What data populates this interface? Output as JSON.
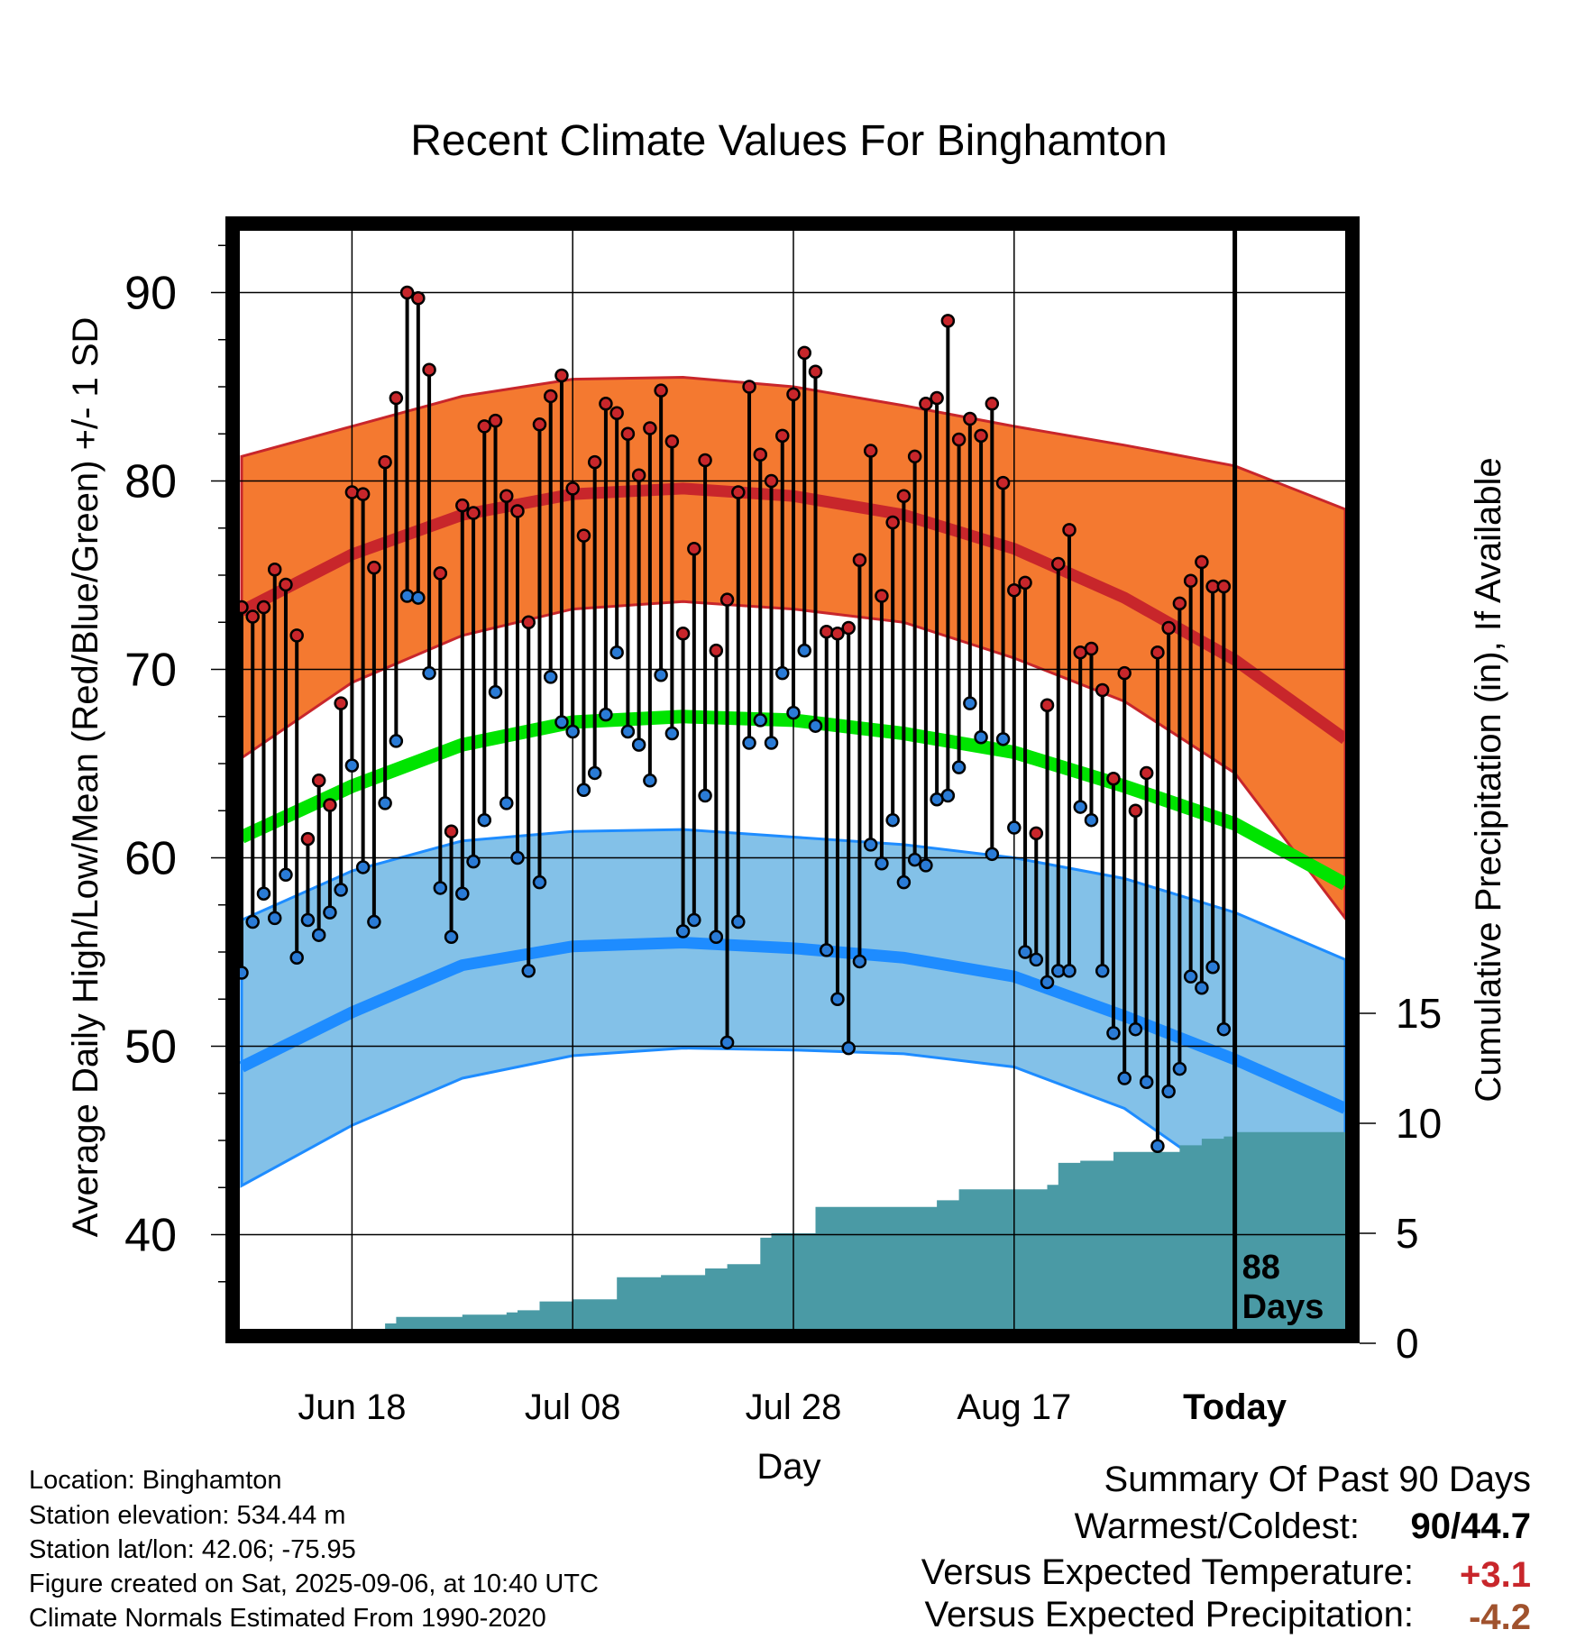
{
  "chart_data": {
    "type": "line",
    "title": "Recent Climate Values For Binghamton",
    "xlabel": "Day",
    "ylabel": "Average Daily High/Low/Mean (Red/Blue/Green) +/- 1 SD",
    "y2label": "Cumulative Precipitation (in), If Available",
    "ylim": [
      35,
      95
    ],
    "y2lim": [
      0,
      37.5
    ],
    "xlim": [
      -10,
      90
    ],
    "x_ticks": [
      {
        "x": 0,
        "label": "Jun 18"
      },
      {
        "x": 20,
        "label": "Jul 08"
      },
      {
        "x": 40,
        "label": "Jul 28"
      },
      {
        "x": 60,
        "label": "Aug 17"
      },
      {
        "x": 80,
        "label": "Today"
      }
    ],
    "y_ticks": [
      40,
      50,
      60,
      70,
      80,
      90
    ],
    "y2_ticks": [
      0,
      5,
      10,
      15
    ],
    "today_x": 80,
    "today_label_line1": "88",
    "today_label_line2": "Days",
    "grid": true,
    "normals": {
      "x": [
        -10,
        0,
        10,
        20,
        30,
        40,
        50,
        60,
        70,
        80,
        90
      ],
      "high_mean": [
        73.1,
        76.1,
        78.2,
        79.3,
        79.6,
        79.2,
        78.2,
        76.4,
        73.8,
        70.5,
        66.3
      ],
      "high_sd_upper": [
        81.3,
        82.9,
        84.5,
        85.4,
        85.5,
        85.0,
        84.0,
        82.9,
        81.9,
        80.8,
        78.5
      ],
      "high_sd_lower": [
        65.3,
        69.3,
        71.8,
        73.2,
        73.6,
        73.2,
        72.5,
        70.6,
        68.3,
        64.5,
        56.8
      ],
      "mean_mean": [
        61.1,
        63.8,
        66.0,
        67.2,
        67.5,
        67.3,
        66.6,
        65.6,
        63.8,
        61.8,
        58.6
      ],
      "low_mean": [
        48.9,
        51.8,
        54.3,
        55.3,
        55.5,
        55.2,
        54.7,
        53.7,
        51.6,
        49.3,
        46.7
      ],
      "low_sd_upper": [
        56.7,
        59.3,
        60.9,
        61.4,
        61.5,
        61.1,
        60.7,
        60.0,
        58.9,
        57.1,
        54.6
      ],
      "low_sd_lower": [
        42.6,
        45.8,
        48.3,
        49.5,
        49.9,
        49.8,
        49.6,
        48.9,
        46.7,
        42.6,
        38.9
      ]
    },
    "series": [
      {
        "name": "High",
        "color": "#c8262b",
        "x": [
          -10,
          -9,
          -8,
          -7,
          -6,
          -5,
          -4,
          -3,
          -2,
          -1,
          0,
          1,
          2,
          3,
          4,
          5,
          6,
          7,
          8,
          9,
          10,
          11,
          12,
          13,
          14,
          15,
          16,
          17,
          18,
          19,
          20,
          21,
          22,
          23,
          24,
          25,
          26,
          27,
          28,
          29,
          30,
          31,
          32,
          33,
          34,
          35,
          36,
          37,
          38,
          39,
          40,
          41,
          42,
          43,
          44,
          45,
          46,
          47,
          48,
          49,
          50,
          51,
          52,
          53,
          54,
          55,
          56,
          57,
          58,
          59,
          60,
          61,
          62,
          63,
          64,
          65,
          66,
          67,
          68,
          69,
          70,
          71,
          72,
          73,
          74,
          75,
          76,
          77,
          78,
          79
        ],
        "values": [
          73.3,
          72.8,
          73.3,
          75.3,
          74.5,
          71.8,
          61.0,
          64.1,
          62.8,
          68.2,
          79.4,
          79.3,
          75.4,
          81.0,
          84.4,
          90.0,
          89.7,
          85.9,
          75.1,
          61.4,
          78.7,
          78.3,
          82.9,
          83.2,
          79.2,
          78.4,
          72.5,
          83.0,
          84.5,
          85.6,
          79.6,
          77.1,
          81.0,
          84.1,
          83.6,
          82.5,
          80.3,
          82.8,
          84.8,
          82.1,
          71.9,
          76.4,
          81.1,
          71.0,
          73.7,
          79.4,
          85.0,
          81.4,
          80.0,
          82.4,
          84.6,
          86.8,
          85.8,
          72.0,
          71.9,
          72.2,
          75.8,
          81.6,
          73.9,
          77.8,
          79.2,
          81.3,
          84.1,
          84.4,
          88.5,
          82.2,
          83.3,
          82.4,
          84.1,
          79.9,
          74.2,
          74.6,
          61.3,
          68.1,
          75.6,
          77.4,
          70.9,
          71.1,
          68.9,
          64.2,
          69.8,
          62.5,
          64.5,
          70.9,
          72.2,
          73.5,
          74.7,
          75.7,
          74.4,
          74.4
        ]
      },
      {
        "name": "Low",
        "color": "#2a7bd6",
        "x": [
          -10,
          -9,
          -8,
          -7,
          -6,
          -5,
          -4,
          -3,
          -2,
          -1,
          0,
          1,
          2,
          3,
          4,
          5,
          6,
          7,
          8,
          9,
          10,
          11,
          12,
          13,
          14,
          15,
          16,
          17,
          18,
          19,
          20,
          21,
          22,
          23,
          24,
          25,
          26,
          27,
          28,
          29,
          30,
          31,
          32,
          33,
          34,
          35,
          36,
          37,
          38,
          39,
          40,
          41,
          42,
          43,
          44,
          45,
          46,
          47,
          48,
          49,
          50,
          51,
          52,
          53,
          54,
          55,
          56,
          57,
          58,
          59,
          60,
          61,
          62,
          63,
          64,
          65,
          66,
          67,
          68,
          69,
          70,
          71,
          72,
          73,
          74,
          75,
          76,
          77,
          78,
          79
        ],
        "values": [
          53.9,
          56.6,
          58.1,
          56.8,
          59.1,
          54.7,
          56.7,
          55.9,
          57.1,
          58.3,
          64.9,
          59.5,
          56.6,
          62.9,
          66.2,
          73.9,
          73.8,
          69.8,
          58.4,
          55.8,
          58.1,
          59.8,
          62.0,
          68.8,
          62.9,
          60.0,
          54.0,
          58.7,
          69.6,
          67.2,
          66.7,
          63.6,
          64.5,
          67.6,
          70.9,
          66.7,
          66.0,
          64.1,
          69.7,
          66.6,
          56.1,
          56.7,
          63.3,
          55.8,
          50.2,
          56.6,
          66.1,
          67.3,
          66.1,
          69.8,
          67.7,
          71.0,
          67.0,
          55.1,
          52.5,
          49.9,
          54.5,
          60.7,
          59.7,
          62.0,
          58.7,
          59.9,
          59.6,
          63.1,
          63.3,
          64.8,
          68.2,
          66.4,
          60.2,
          66.3,
          61.6,
          55.0,
          54.6,
          53.4,
          54.0,
          54.0,
          62.7,
          62.0,
          54.0,
          50.7,
          48.3,
          50.9,
          48.1,
          44.7,
          47.6,
          48.8,
          53.7,
          53.1,
          54.2,
          50.9
        ]
      }
    ],
    "cumulative_precipitation": {
      "x": [
        -10,
        -5,
        -3,
        0,
        3,
        4,
        7,
        10,
        14,
        15,
        17,
        18,
        19,
        20,
        24,
        28,
        30,
        32,
        34,
        37,
        38,
        42,
        48,
        50,
        52,
        53,
        55,
        59,
        63,
        64,
        66,
        69,
        73,
        75,
        77,
        79,
        80,
        90
      ],
      "values": [
        0.0,
        0.2,
        0.3,
        0.4,
        0.9,
        1.2,
        1.2,
        1.3,
        1.4,
        1.5,
        1.9,
        1.9,
        1.9,
        2.0,
        3.0,
        3.1,
        3.1,
        3.4,
        3.6,
        4.8,
        5.0,
        6.2,
        6.2,
        6.2,
        6.2,
        6.5,
        7.0,
        7.0,
        7.2,
        8.2,
        8.3,
        8.7,
        8.7,
        9.0,
        9.3,
        9.4,
        9.6,
        9.6
      ]
    }
  },
  "info": {
    "location": "Location: Binghamton",
    "elevation": "Station elevation: 534.44 m",
    "latlon": "Station lat/lon: 42.06; -75.95",
    "created": "Figure created on Sat, 2025-09-06, at 10:40 UTC",
    "normals": "Climate Normals Estimated From 1990-2020"
  },
  "summary": {
    "heading": "Summary Of Past 90 Days",
    "warmest_label": "Warmest/Coldest:",
    "warmest_value": "90",
    "coldest_value": "44.7",
    "temp_label": "Versus Expected Temperature:",
    "temp_value": "+3.1",
    "temp_color": "#c8262b",
    "precip_label": "Versus Expected Precipitation:",
    "precip_value": "-4.2",
    "precip_color": "#a0522d"
  },
  "colors": {
    "high_band": "#f47930",
    "high_line": "#c8262b",
    "mean_line": "#00e400",
    "low_band": "#83c1e8",
    "low_line": "#1e8cff",
    "precip_fill": "#4a9aa5"
  }
}
